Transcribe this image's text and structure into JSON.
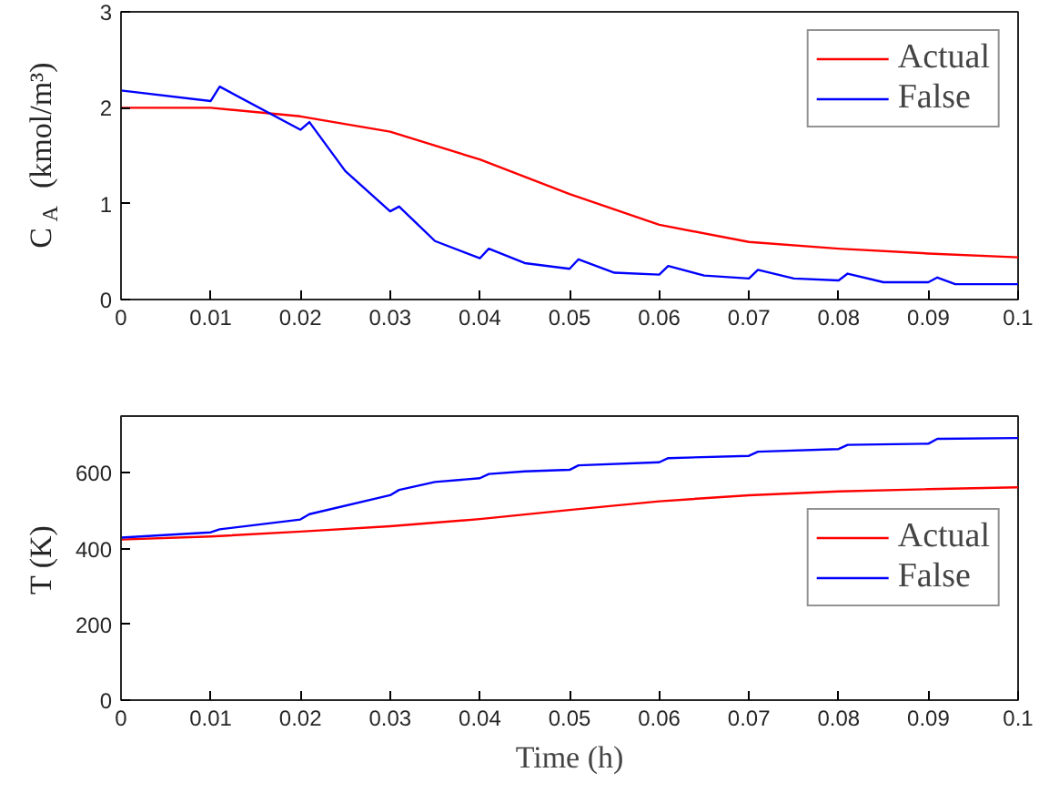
{
  "chart_data": [
    {
      "type": "line",
      "ylabel": "C$_{A}$ (kmol/m³)",
      "xlim": [
        0,
        0.1
      ],
      "ylim": [
        0,
        3
      ],
      "xticks": [
        0,
        0.01,
        0.02,
        0.03,
        0.04,
        0.05,
        0.06,
        0.07,
        0.08,
        0.09,
        0.1
      ],
      "yticks": [
        0,
        1,
        2,
        3
      ],
      "grid": false,
      "legend": "top right",
      "line_style": "solid",
      "series": [
        {
          "name": "Actual",
          "color": "#ff0000",
          "x": [
            0,
            0.01,
            0.02,
            0.03,
            0.04,
            0.05,
            0.06,
            0.07,
            0.08,
            0.09,
            0.1
          ],
          "values": [
            2.0,
            2.0,
            1.91,
            1.75,
            1.46,
            1.1,
            0.78,
            0.6,
            0.53,
            0.48,
            0.44
          ]
        },
        {
          "name": "False",
          "color": "#0000ff",
          "x": [
            0,
            0.01,
            0.011,
            0.02,
            0.021,
            0.025,
            0.03,
            0.031,
            0.035,
            0.04,
            0.041,
            0.045,
            0.05,
            0.051,
            0.055,
            0.06,
            0.061,
            0.065,
            0.07,
            0.071,
            0.075,
            0.08,
            0.081,
            0.085,
            0.09,
            0.091,
            0.093,
            0.1
          ],
          "values": [
            2.18,
            2.07,
            2.22,
            1.77,
            1.85,
            1.34,
            0.92,
            0.97,
            0.61,
            0.43,
            0.53,
            0.38,
            0.32,
            0.42,
            0.28,
            0.26,
            0.35,
            0.25,
            0.22,
            0.31,
            0.22,
            0.2,
            0.27,
            0.18,
            0.18,
            0.23,
            0.16,
            0.16
          ]
        }
      ]
    },
    {
      "type": "line",
      "xlabel": "Time (h)",
      "ylabel": "T (K)",
      "xlim": [
        0,
        0.1
      ],
      "ylim": [
        0,
        750
      ],
      "xticks": [
        0,
        0.01,
        0.02,
        0.03,
        0.04,
        0.05,
        0.06,
        0.07,
        0.08,
        0.09,
        0.1
      ],
      "yticks": [
        0,
        200,
        400,
        600
      ],
      "grid": false,
      "legend": "right",
      "line_style": "solid",
      "series": [
        {
          "name": "Actual",
          "color": "#ff0000",
          "x": [
            0,
            0.01,
            0.02,
            0.03,
            0.04,
            0.05,
            0.06,
            0.07,
            0.08,
            0.09,
            0.1
          ],
          "values": [
            424,
            432,
            445,
            459,
            478,
            502,
            525,
            541,
            551,
            557,
            562
          ]
        },
        {
          "name": "False",
          "color": "#0000ff",
          "x": [
            0,
            0.01,
            0.011,
            0.02,
            0.021,
            0.03,
            0.031,
            0.035,
            0.04,
            0.041,
            0.045,
            0.05,
            0.051,
            0.06,
            0.061,
            0.07,
            0.071,
            0.08,
            0.081,
            0.09,
            0.091,
            0.1
          ],
          "values": [
            429,
            443,
            451,
            477,
            491,
            541,
            555,
            576,
            586,
            597,
            604,
            608,
            620,
            628,
            639,
            645,
            656,
            663,
            674,
            677,
            690,
            692
          ]
        }
      ]
    }
  ]
}
